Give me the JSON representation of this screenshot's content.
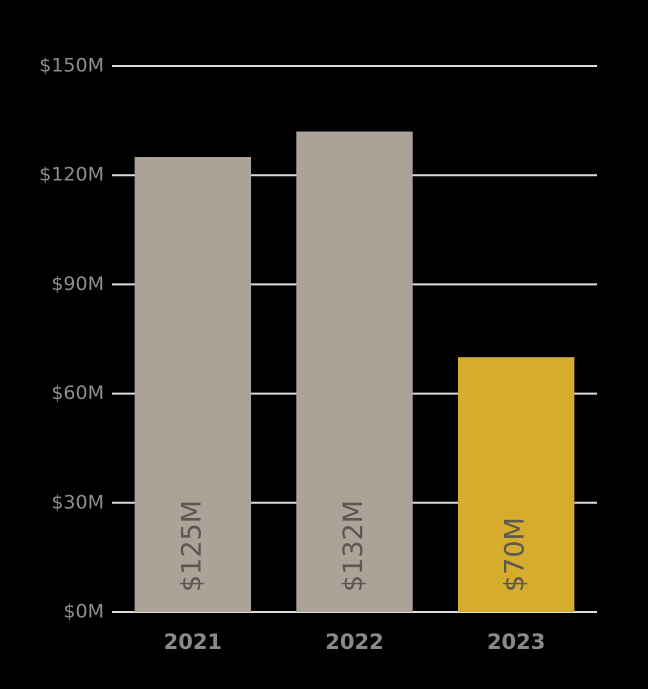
{
  "chart_data": {
    "type": "bar",
    "categories": [
      "2021",
      "2022",
      "2023"
    ],
    "values": [
      125,
      132,
      70
    ],
    "value_labels": [
      "$125M",
      "$132M",
      "$70M"
    ],
    "colors": [
      "#aca398",
      "#aca398",
      "#d5ac2b"
    ],
    "ylim": [
      0,
      150
    ],
    "yticks": [
      {
        "value": 0,
        "label": "$0M"
      },
      {
        "value": 30,
        "label": "$30M"
      },
      {
        "value": 60,
        "label": "$60M"
      },
      {
        "value": 90,
        "label": "$90M"
      },
      {
        "value": 120,
        "label": "$120M"
      },
      {
        "value": 150,
        "label": "$150M"
      }
    ],
    "grid": true
  }
}
